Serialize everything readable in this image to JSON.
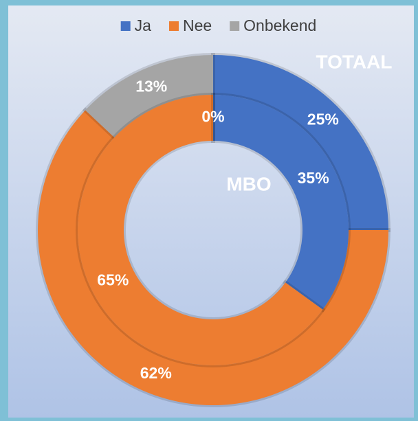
{
  "chart_data": {
    "type": "donut",
    "categories": [
      "Ja",
      "Nee",
      "Onbekend"
    ],
    "colors": [
      "#4472c4",
      "#ed7d31",
      "#a5a5a5"
    ],
    "series": [
      {
        "name": "TOTAAL",
        "values": [
          25,
          62,
          13
        ],
        "value_labels": [
          "25%",
          "62%",
          "13%"
        ]
      },
      {
        "name": "MBO",
        "values": [
          35,
          65,
          0
        ],
        "value_labels": [
          "35%",
          "65%",
          "0%"
        ]
      }
    ],
    "legend": "top"
  }
}
